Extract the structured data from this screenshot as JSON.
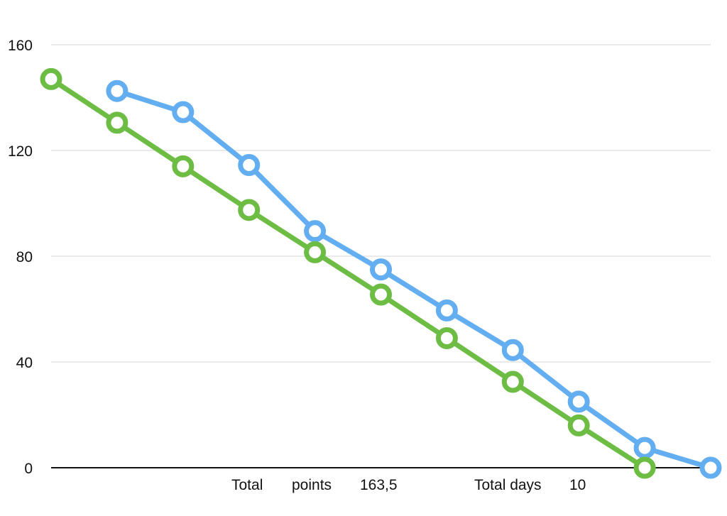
{
  "chart_data": {
    "type": "line",
    "x": [
      1,
      2,
      3,
      4,
      5,
      6,
      7,
      8,
      9,
      10,
      11
    ],
    "series": [
      {
        "color": "#62aef0",
        "values": [
          null,
          142.5,
          134.5,
          114.5,
          89.5,
          75,
          59.5,
          44.5,
          25,
          7.5,
          0
        ]
      },
      {
        "color": "#6dbd45",
        "values": [
          147,
          130.5,
          114,
          97.5,
          81.5,
          65.5,
          49,
          32.5,
          16,
          0,
          null
        ]
      }
    ],
    "yticks": [
      0,
      40,
      80,
      120,
      160
    ],
    "ylim": [
      0,
      160
    ],
    "grid": true,
    "xlabel": "",
    "ylabel": ""
  },
  "footer": {
    "total_label": "Total",
    "points_label": "points",
    "points_value": "163,5",
    "days_label": "Total days",
    "days_value": "10"
  }
}
